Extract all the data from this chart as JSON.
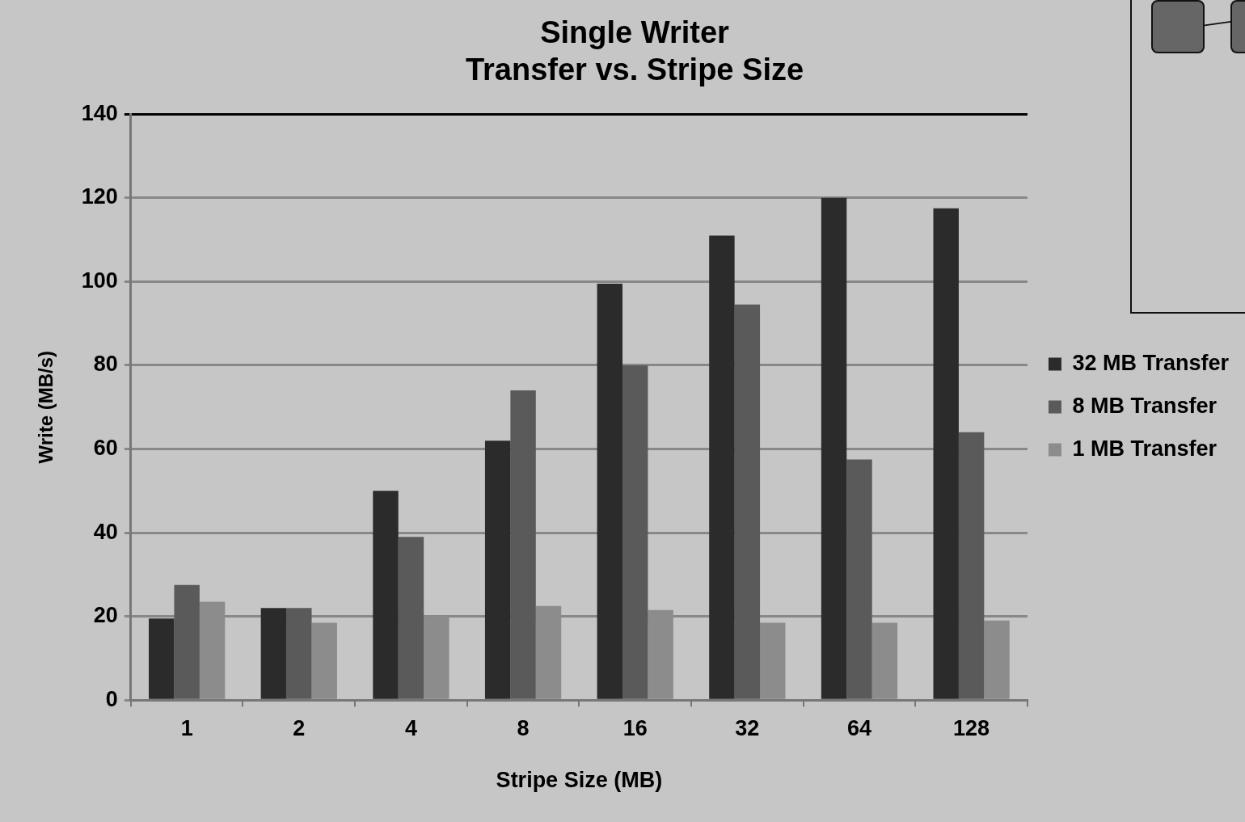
{
  "chart_data": {
    "type": "bar",
    "title": [
      "Single Writer",
      "Transfer vs. Stripe Size"
    ],
    "xlabel": "Stripe Size (MB)",
    "ylabel": "Write (MB/s)",
    "categories": [
      "1",
      "2",
      "4",
      "8",
      "16",
      "32",
      "64",
      "128"
    ],
    "series": [
      {
        "name": "32 MB Transfer",
        "color": "#2b2b2b",
        "values": [
          19.5,
          22,
          50,
          62,
          99.5,
          111,
          120,
          117.5
        ]
      },
      {
        "name": "8 MB Transfer",
        "color": "#5a5a5a",
        "values": [
          27.5,
          22,
          39,
          74,
          80,
          94.5,
          57.5,
          64
        ]
      },
      {
        "name": "1 MB Transfer",
        "color": "#8c8c8c",
        "values": [
          23.5,
          18.5,
          20,
          22.5,
          21.5,
          18.5,
          18.5,
          19
        ]
      }
    ],
    "ylim": [
      0,
      140
    ],
    "yticks": [
      0,
      20,
      40,
      60,
      80,
      100,
      120,
      140
    ],
    "grid": "y",
    "legend": "right"
  }
}
